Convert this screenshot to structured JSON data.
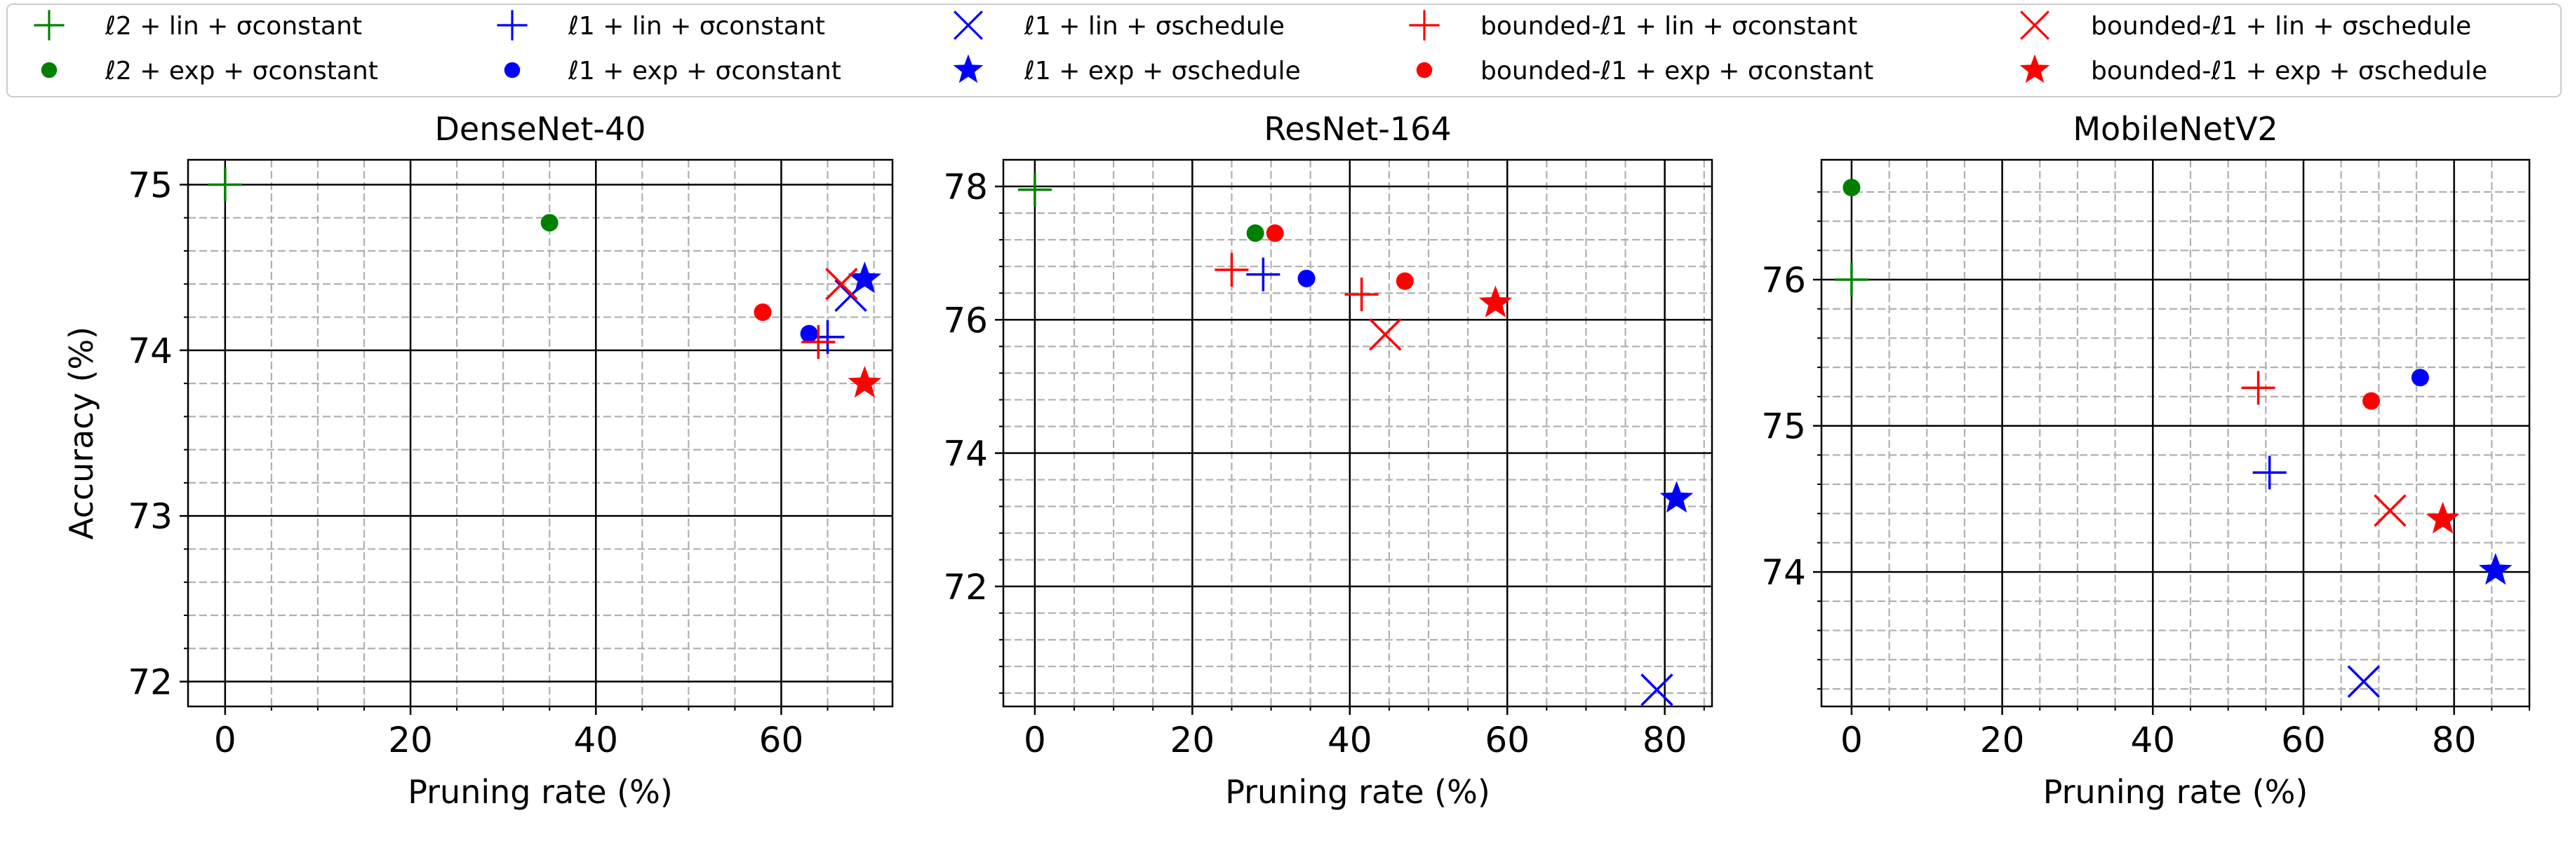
{
  "colors": {
    "green": "#008000",
    "blue": "#0000ff",
    "red": "#ff0000"
  },
  "legend": [
    {
      "key": "l2_lin_const",
      "label": "ℓ2 + lin + σconstant",
      "color": "green",
      "marker": "plus"
    },
    {
      "key": "l2_exp_const",
      "label": "ℓ2 + exp + σconstant",
      "color": "green",
      "marker": "dot"
    },
    {
      "key": "l1_lin_const",
      "label": "ℓ1 + lin + σconstant",
      "color": "blue",
      "marker": "plus"
    },
    {
      "key": "l1_exp_const",
      "label": "ℓ1 + exp + σconstant",
      "color": "blue",
      "marker": "dot"
    },
    {
      "key": "l1_lin_sched",
      "label": "ℓ1 + lin + σschedule",
      "color": "blue",
      "marker": "x"
    },
    {
      "key": "l1_exp_sched",
      "label": "ℓ1 + exp + σschedule",
      "color": "blue",
      "marker": "star"
    },
    {
      "key": "b_lin_const",
      "label": "bounded-ℓ1 + lin + σconstant",
      "color": "red",
      "marker": "plus"
    },
    {
      "key": "b_exp_const",
      "label": "bounded-ℓ1 + exp + σconstant",
      "color": "red",
      "marker": "dot"
    },
    {
      "key": "b_lin_sched",
      "label": "bounded-ℓ1 + lin + σschedule",
      "color": "red",
      "marker": "x"
    },
    {
      "key": "b_exp_sched",
      "label": "bounded-ℓ1 + exp + σschedule",
      "color": "red",
      "marker": "star"
    }
  ],
  "chart_data": [
    {
      "type": "scatter",
      "title": "DenseNet-40",
      "xlabel": "Pruning rate (%)",
      "ylabel": "Accuracy (%)",
      "xlim": [
        -4,
        72
      ],
      "ylim": [
        71.85,
        75.15
      ],
      "xticks": [
        0,
        20,
        40,
        60
      ],
      "yticks": [
        72,
        73,
        74,
        75
      ],
      "xminor": [
        0,
        5,
        10,
        15,
        20,
        25,
        30,
        35,
        40,
        45,
        50,
        55,
        60,
        65,
        70
      ],
      "yminor": [
        72.2,
        72.4,
        72.6,
        72.8,
        73.2,
        73.4,
        73.6,
        73.8,
        74.2,
        74.4,
        74.6,
        74.8
      ],
      "series": [
        {
          "name": "l2_lin_const",
          "points": [
            [
              0,
              75.0
            ]
          ]
        },
        {
          "name": "l2_exp_const",
          "points": [
            [
              35,
              74.77
            ]
          ]
        },
        {
          "name": "l1_lin_const",
          "points": [
            [
              65,
              74.08
            ]
          ]
        },
        {
          "name": "l1_exp_const",
          "points": [
            [
              63,
              74.1
            ]
          ]
        },
        {
          "name": "l1_lin_sched",
          "points": [
            [
              67.5,
              74.33
            ]
          ]
        },
        {
          "name": "l1_exp_sched",
          "points": [
            [
              69,
              74.43
            ]
          ]
        },
        {
          "name": "b_lin_const",
          "points": [
            [
              64,
              74.05
            ]
          ]
        },
        {
          "name": "b_exp_const",
          "points": [
            [
              58,
              74.23
            ]
          ]
        },
        {
          "name": "b_lin_sched",
          "points": [
            [
              66.5,
              74.4
            ]
          ]
        },
        {
          "name": "b_exp_sched",
          "points": [
            [
              69,
              73.8
            ]
          ]
        }
      ]
    },
    {
      "type": "scatter",
      "title": "ResNet-164",
      "xlabel": "Pruning rate (%)",
      "ylabel": "",
      "xlim": [
        -4,
        86
      ],
      "ylim": [
        70.2,
        78.4
      ],
      "xticks": [
        0,
        20,
        40,
        60,
        80
      ],
      "yticks": [
        72,
        74,
        76,
        78
      ],
      "xminor": [
        0,
        5,
        10,
        15,
        20,
        25,
        30,
        35,
        40,
        45,
        50,
        55,
        60,
        65,
        70,
        75,
        80,
        85
      ],
      "yminor": [
        70.4,
        70.8,
        71.2,
        71.6,
        72.4,
        72.8,
        73.2,
        73.6,
        74.4,
        74.8,
        75.2,
        75.6,
        76.4,
        76.8,
        77.2,
        77.6
      ],
      "series": [
        {
          "name": "l2_lin_const",
          "points": [
            [
              0,
              77.95
            ]
          ]
        },
        {
          "name": "l2_exp_const",
          "points": [
            [
              28,
              77.3
            ]
          ]
        },
        {
          "name": "l1_lin_const",
          "points": [
            [
              29,
              76.68
            ]
          ]
        },
        {
          "name": "l1_exp_const",
          "points": [
            [
              34.5,
              76.62
            ]
          ]
        },
        {
          "name": "l1_lin_sched",
          "points": [
            [
              79,
              70.45
            ]
          ]
        },
        {
          "name": "l1_exp_sched",
          "points": [
            [
              81.5,
              73.32
            ]
          ]
        },
        {
          "name": "b_lin_const",
          "points": [
            [
              25,
              76.75
            ],
            [
              41.5,
              76.38
            ]
          ]
        },
        {
          "name": "b_exp_const",
          "points": [
            [
              30.5,
              77.3
            ],
            [
              47,
              76.58
            ]
          ]
        },
        {
          "name": "b_lin_sched",
          "points": [
            [
              44.5,
              75.78
            ]
          ]
        },
        {
          "name": "b_exp_sched",
          "points": [
            [
              58.5,
              76.25
            ]
          ]
        }
      ]
    },
    {
      "type": "scatter",
      "title": "MobileNetV2",
      "xlabel": "Pruning rate (%)",
      "ylabel": "",
      "xlim": [
        -4,
        90
      ],
      "ylim": [
        73.08,
        76.82
      ],
      "xticks": [
        0,
        20,
        40,
        60,
        80
      ],
      "yticks": [
        74,
        75,
        76
      ],
      "xminor": [
        0,
        5,
        10,
        15,
        20,
        25,
        30,
        35,
        40,
        45,
        50,
        55,
        60,
        65,
        70,
        75,
        80,
        85,
        90
      ],
      "yminor": [
        73.2,
        73.4,
        73.6,
        73.8,
        74.2,
        74.4,
        74.6,
        74.8,
        75.2,
        75.4,
        75.6,
        75.8,
        76.2,
        76.4,
        76.6
      ],
      "series": [
        {
          "name": "l2_lin_const",
          "points": [
            [
              0,
              76.0
            ]
          ]
        },
        {
          "name": "l2_exp_const",
          "points": [
            [
              0,
              76.63
            ]
          ]
        },
        {
          "name": "l1_lin_const",
          "points": [
            [
              55.5,
              74.68
            ]
          ]
        },
        {
          "name": "l1_exp_const",
          "points": [
            [
              75.5,
              75.33
            ]
          ]
        },
        {
          "name": "l1_lin_sched",
          "points": [
            [
              68,
              73.25
            ]
          ]
        },
        {
          "name": "l1_exp_sched",
          "points": [
            [
              85.5,
              74.01
            ]
          ]
        },
        {
          "name": "b_lin_const",
          "points": [
            [
              54,
              75.26
            ]
          ]
        },
        {
          "name": "b_exp_const",
          "points": [
            [
              69,
              75.17
            ]
          ]
        },
        {
          "name": "b_lin_sched",
          "points": [
            [
              71.5,
              74.42
            ]
          ]
        },
        {
          "name": "b_exp_sched",
          "points": [
            [
              78.5,
              74.36
            ]
          ]
        }
      ]
    }
  ]
}
